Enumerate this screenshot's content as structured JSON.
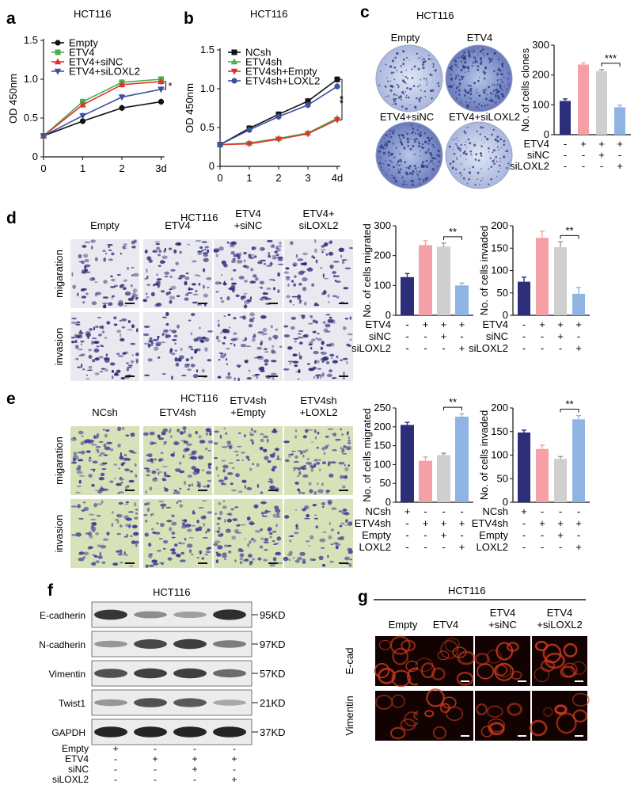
{
  "panel_labels": {
    "a": "a",
    "b": "b",
    "c": "c",
    "d": "d",
    "e": "e",
    "f": "f",
    "g": "g"
  },
  "cell_line": "HCT116",
  "colors": {
    "navy": "#2c2e7a",
    "pink": "#f4a0a6",
    "grey": "#cfcfcf",
    "lightblue": "#8fb4e3",
    "black": "#111111",
    "green": "#4cae4c",
    "red": "#e0322c",
    "blue": "#3d4fa0"
  },
  "chart_data": [
    {
      "id": "a",
      "type": "line",
      "title": "HCT116",
      "ylabel": "OD 450nm",
      "x_ticks": [
        "0",
        "1",
        "2",
        "3d"
      ],
      "ylim": [
        0,
        1.5
      ],
      "y_ticks": [
        "0",
        "0.5",
        "1.0",
        "1.5"
      ],
      "x": [
        0,
        1,
        2,
        3
      ],
      "series": [
        {
          "name": "Empty",
          "values": [
            0.27,
            0.46,
            0.63,
            0.71
          ],
          "color": "#111111",
          "marker": "circle"
        },
        {
          "name": "ETV4",
          "values": [
            0.27,
            0.71,
            0.96,
            1.0
          ],
          "color": "#4cae4c",
          "marker": "square"
        },
        {
          "name": "ETV4+siNC",
          "values": [
            0.27,
            0.67,
            0.93,
            0.97
          ],
          "color": "#e0322c",
          "marker": "triangle-up"
        },
        {
          "name": "ETV4+siLOXL2",
          "values": [
            0.27,
            0.53,
            0.77,
            0.87
          ],
          "color": "#3d4fa0",
          "marker": "triangle-down"
        }
      ],
      "significance": "*"
    },
    {
      "id": "b",
      "type": "line",
      "title": "HCT116",
      "ylabel": "OD 450nm",
      "x_ticks": [
        "0",
        "1",
        "2",
        "3",
        "4d"
      ],
      "ylim": [
        0,
        1.5
      ],
      "y_ticks": [
        "0",
        "0.5",
        "1.0",
        "1.5"
      ],
      "x": [
        0,
        1,
        2,
        3,
        4
      ],
      "series": [
        {
          "name": "NCsh",
          "values": [
            0.28,
            0.49,
            0.67,
            0.84,
            1.12
          ],
          "color": "#111111",
          "marker": "square"
        },
        {
          "name": "ETV4sh",
          "values": [
            0.28,
            0.3,
            0.36,
            0.43,
            0.62
          ],
          "color": "#4cae4c",
          "marker": "triangle-up"
        },
        {
          "name": "ETV4sh+Empty",
          "values": [
            0.28,
            0.29,
            0.35,
            0.42,
            0.6
          ],
          "color": "#e0322c",
          "marker": "triangle-down"
        },
        {
          "name": "ETV4sh+LOXL2",
          "values": [
            0.28,
            0.47,
            0.64,
            0.79,
            1.03
          ],
          "color": "#3d4fa0",
          "marker": "circle"
        }
      ],
      "significance": "**"
    },
    {
      "id": "c",
      "type": "bar",
      "ylabel": "No. of cells clones",
      "ylim": [
        0,
        300
      ],
      "y_ticks": [
        "0",
        "100",
        "200",
        "300"
      ],
      "values": [
        113,
        235,
        213,
        92
      ],
      "errors": [
        7,
        6,
        5,
        7
      ],
      "bar_colors": [
        "#2c2e7a",
        "#f4a0a6",
        "#cfcfcf",
        "#8fb4e3"
      ],
      "significance": "***",
      "conditions": [
        {
          "label": "ETV4",
          "signs": [
            "-",
            "+",
            "+",
            "+"
          ]
        },
        {
          "label": "siNC",
          "signs": [
            "-",
            "-",
            "+",
            "-"
          ]
        },
        {
          "label": "siLOXL2",
          "signs": [
            "-",
            "-",
            "-",
            "+"
          ]
        }
      ]
    },
    {
      "id": "d-migrated",
      "type": "bar",
      "ylabel": "No. of cells migrated",
      "ylim": [
        0,
        300
      ],
      "y_ticks": [
        "0",
        "100",
        "200",
        "300"
      ],
      "values": [
        128,
        235,
        230,
        100
      ],
      "errors": [
        12,
        15,
        12,
        8
      ],
      "bar_colors": [
        "#2c2e7a",
        "#f4a0a6",
        "#cfcfcf",
        "#8fb4e3"
      ],
      "significance": "**",
      "conditions": [
        {
          "label": "ETV4",
          "signs": [
            "-",
            "+",
            "+",
            "+"
          ]
        },
        {
          "label": "siNC",
          "signs": [
            "-",
            "-",
            "+",
            "-"
          ]
        },
        {
          "label": "siLOXL2",
          "signs": [
            "-",
            "-",
            "-",
            "+"
          ]
        }
      ]
    },
    {
      "id": "d-invaded",
      "type": "bar",
      "ylabel": "No. of cells invaded",
      "ylim": [
        0,
        200
      ],
      "y_ticks": [
        "0",
        "50",
        "100",
        "150",
        "200"
      ],
      "values": [
        75,
        173,
        152,
        48
      ],
      "errors": [
        10,
        15,
        12,
        14
      ],
      "bar_colors": [
        "#2c2e7a",
        "#f4a0a6",
        "#cfcfcf",
        "#8fb4e3"
      ],
      "significance": "**",
      "conditions": [
        {
          "label": "ETV4",
          "signs": [
            "-",
            "+",
            "+",
            "+"
          ]
        },
        {
          "label": "siNC",
          "signs": [
            "-",
            "-",
            "+",
            "-"
          ]
        },
        {
          "label": "siLOXL2",
          "signs": [
            "-",
            "-",
            "-",
            "+"
          ]
        }
      ]
    },
    {
      "id": "e-migrated",
      "type": "bar",
      "ylabel": "No. of cells migrated",
      "ylim": [
        0,
        250
      ],
      "y_ticks": [
        "0",
        "50",
        "100",
        "150",
        "200",
        "250"
      ],
      "values": [
        205,
        110,
        125,
        227
      ],
      "errors": [
        7,
        10,
        5,
        8
      ],
      "bar_colors": [
        "#2c2e7a",
        "#f4a0a6",
        "#cfcfcf",
        "#8fb4e3"
      ],
      "significance": "**",
      "conditions": [
        {
          "label": "NCsh",
          "signs": [
            "+",
            "-",
            "-",
            "-"
          ]
        },
        {
          "label": "ETV4sh",
          "signs": [
            "-",
            "+",
            "+",
            "+"
          ]
        },
        {
          "label": "Empty",
          "signs": [
            "-",
            "-",
            "+",
            "-"
          ]
        },
        {
          "label": "LOXL2",
          "signs": [
            "-",
            "-",
            "-",
            "+"
          ]
        }
      ]
    },
    {
      "id": "e-invaded",
      "type": "bar",
      "ylabel": "No. of cells invaded",
      "ylim": [
        0,
        200
      ],
      "y_ticks": [
        "0",
        "50",
        "100",
        "150",
        "200"
      ],
      "values": [
        148,
        113,
        92,
        176
      ],
      "errors": [
        5,
        8,
        5,
        8
      ],
      "bar_colors": [
        "#2c2e7a",
        "#f4a0a6",
        "#cfcfcf",
        "#8fb4e3"
      ],
      "significance": "**",
      "conditions": [
        {
          "label": "NCsh",
          "signs": [
            "+",
            "-",
            "-",
            "-"
          ]
        },
        {
          "label": "ETV4sh",
          "signs": [
            "-",
            "+",
            "+",
            "+"
          ]
        },
        {
          "label": "Empty",
          "signs": [
            "-",
            "-",
            "+",
            "-"
          ]
        },
        {
          "label": "LOXL2",
          "signs": [
            "-",
            "-",
            "-",
            "+"
          ]
        }
      ]
    }
  ],
  "panel_c_images": {
    "labels": [
      "Empty",
      "ETV4",
      "ETV4+siNC",
      "ETV4+siLOXL2"
    ]
  },
  "panel_d_images": {
    "columns": [
      "Empty",
      "ETV4",
      "ETV4\n+siNC",
      "ETV4+\nsiLOXL2"
    ],
    "rows": [
      "migaration",
      "invasion"
    ]
  },
  "panel_e_images": {
    "columns": [
      "NCsh",
      "ETV4sh",
      "ETV4sh\n+Empty",
      "ETV4sh\n+LOXL2"
    ],
    "rows": [
      "migaration",
      "invasion"
    ]
  },
  "panel_f": {
    "title": "HCT116",
    "blots": [
      {
        "name": "E-cadherin",
        "size": "95KD",
        "intensity": [
          0.85,
          0.35,
          0.25,
          0.9
        ]
      },
      {
        "name": "N-cadherin",
        "size": "97KD",
        "intensity": [
          0.3,
          0.75,
          0.8,
          0.45
        ]
      },
      {
        "name": "Vimentin",
        "size": "57KD",
        "intensity": [
          0.7,
          0.8,
          0.8,
          0.55
        ]
      },
      {
        "name": "Twist1",
        "size": "21KD",
        "intensity": [
          0.3,
          0.7,
          0.65,
          0.2
        ]
      },
      {
        "name": "GAPDH",
        "size": "37KD",
        "intensity": [
          0.95,
          0.95,
          0.95,
          0.95
        ]
      }
    ],
    "conditions": [
      {
        "label": "Empty",
        "signs": [
          "+",
          "-",
          "-",
          "-"
        ]
      },
      {
        "label": "ETV4",
        "signs": [
          "-",
          "+",
          "+",
          "+"
        ]
      },
      {
        "label": "siNC",
        "signs": [
          "-",
          "-",
          "+",
          "-"
        ]
      },
      {
        "label": "siLOXL2",
        "signs": [
          "-",
          "-",
          "-",
          "+"
        ]
      }
    ]
  },
  "panel_g": {
    "title": "HCT116",
    "columns": [
      "Empty",
      "ETV4",
      "ETV4\n+siNC",
      "ETV4\n+siLOXL2"
    ],
    "rows": [
      "E-cad",
      "Vimentin"
    ]
  }
}
